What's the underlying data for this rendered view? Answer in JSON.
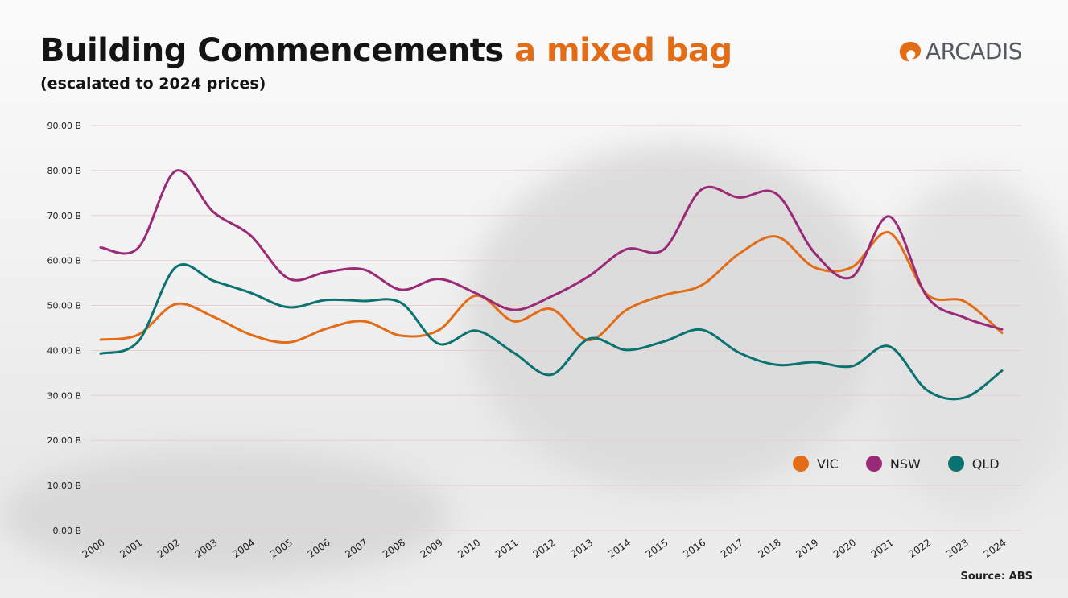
{
  "header": {
    "title_main": "Building Commencements",
    "title_accent": "a mixed bag",
    "subtitle": "(escalated to 2024 prices)",
    "logo_text": "ARCADIS",
    "logo_icon": "arcadis-swirl-icon"
  },
  "footer": {
    "source": "Source: ABS"
  },
  "colors": {
    "accent": "#e36c17",
    "VIC": "#e36c17",
    "NSW": "#9a2a77",
    "QLD": "#0b7272",
    "gridline": "#e8cfcf",
    "axis_text": "#222222"
  },
  "chart_data": {
    "type": "line",
    "title": "Building Commencements a mixed bag",
    "subtitle": "(escalated to 2024 prices)",
    "xlabel": "",
    "ylabel": "",
    "x": [
      "2000",
      "2001",
      "2002",
      "2003",
      "2004",
      "2005",
      "2006",
      "2007",
      "2008",
      "2009",
      "2010",
      "2011",
      "2012",
      "2013",
      "2014",
      "2015",
      "2016",
      "2017",
      "2018",
      "2019",
      "2020",
      "2021",
      "2022",
      "2023",
      "2024"
    ],
    "y_ticks": [
      0,
      10,
      20,
      30,
      40,
      50,
      60,
      70,
      80,
      90
    ],
    "y_tick_labels": [
      "0.00 B",
      "10.00 B",
      "20.00 B",
      "30.00 B",
      "40.00 B",
      "50.00 B",
      "60.00 B",
      "70.00 B",
      "80.00 B",
      "90.00 B"
    ],
    "ylim": [
      0,
      90
    ],
    "grid": "horizontal",
    "legend_position": "bottom-right",
    "series": [
      {
        "name": "VIC",
        "color": "#e36c17",
        "values": [
          42.4,
          43.5,
          50.3,
          47.5,
          43.5,
          41.8,
          44.8,
          46.5,
          43.3,
          44.5,
          52.2,
          46.5,
          49.2,
          42.3,
          49.0,
          52.3,
          54.5,
          61.5,
          65.3,
          58.5,
          58.5,
          66.2,
          52.5,
          50.9,
          43.9
        ]
      },
      {
        "name": "NSW",
        "color": "#9a2a77",
        "values": [
          62.9,
          62.8,
          79.9,
          70.8,
          65.5,
          56.0,
          57.4,
          58.0,
          53.5,
          55.9,
          52.7,
          49.0,
          52.0,
          56.5,
          62.5,
          62.5,
          75.8,
          74.0,
          74.8,
          61.8,
          56.3,
          69.8,
          52.0,
          47.3,
          44.7
        ]
      },
      {
        "name": "QLD",
        "color": "#0b7272",
        "values": [
          39.3,
          42.0,
          58.5,
          55.5,
          52.8,
          49.6,
          51.2,
          51.0,
          50.6,
          41.5,
          44.4,
          39.5,
          34.6,
          42.6,
          40.1,
          42.0,
          44.6,
          39.5,
          36.8,
          37.4,
          36.5,
          40.9,
          31.2,
          29.5,
          35.5
        ]
      }
    ]
  }
}
